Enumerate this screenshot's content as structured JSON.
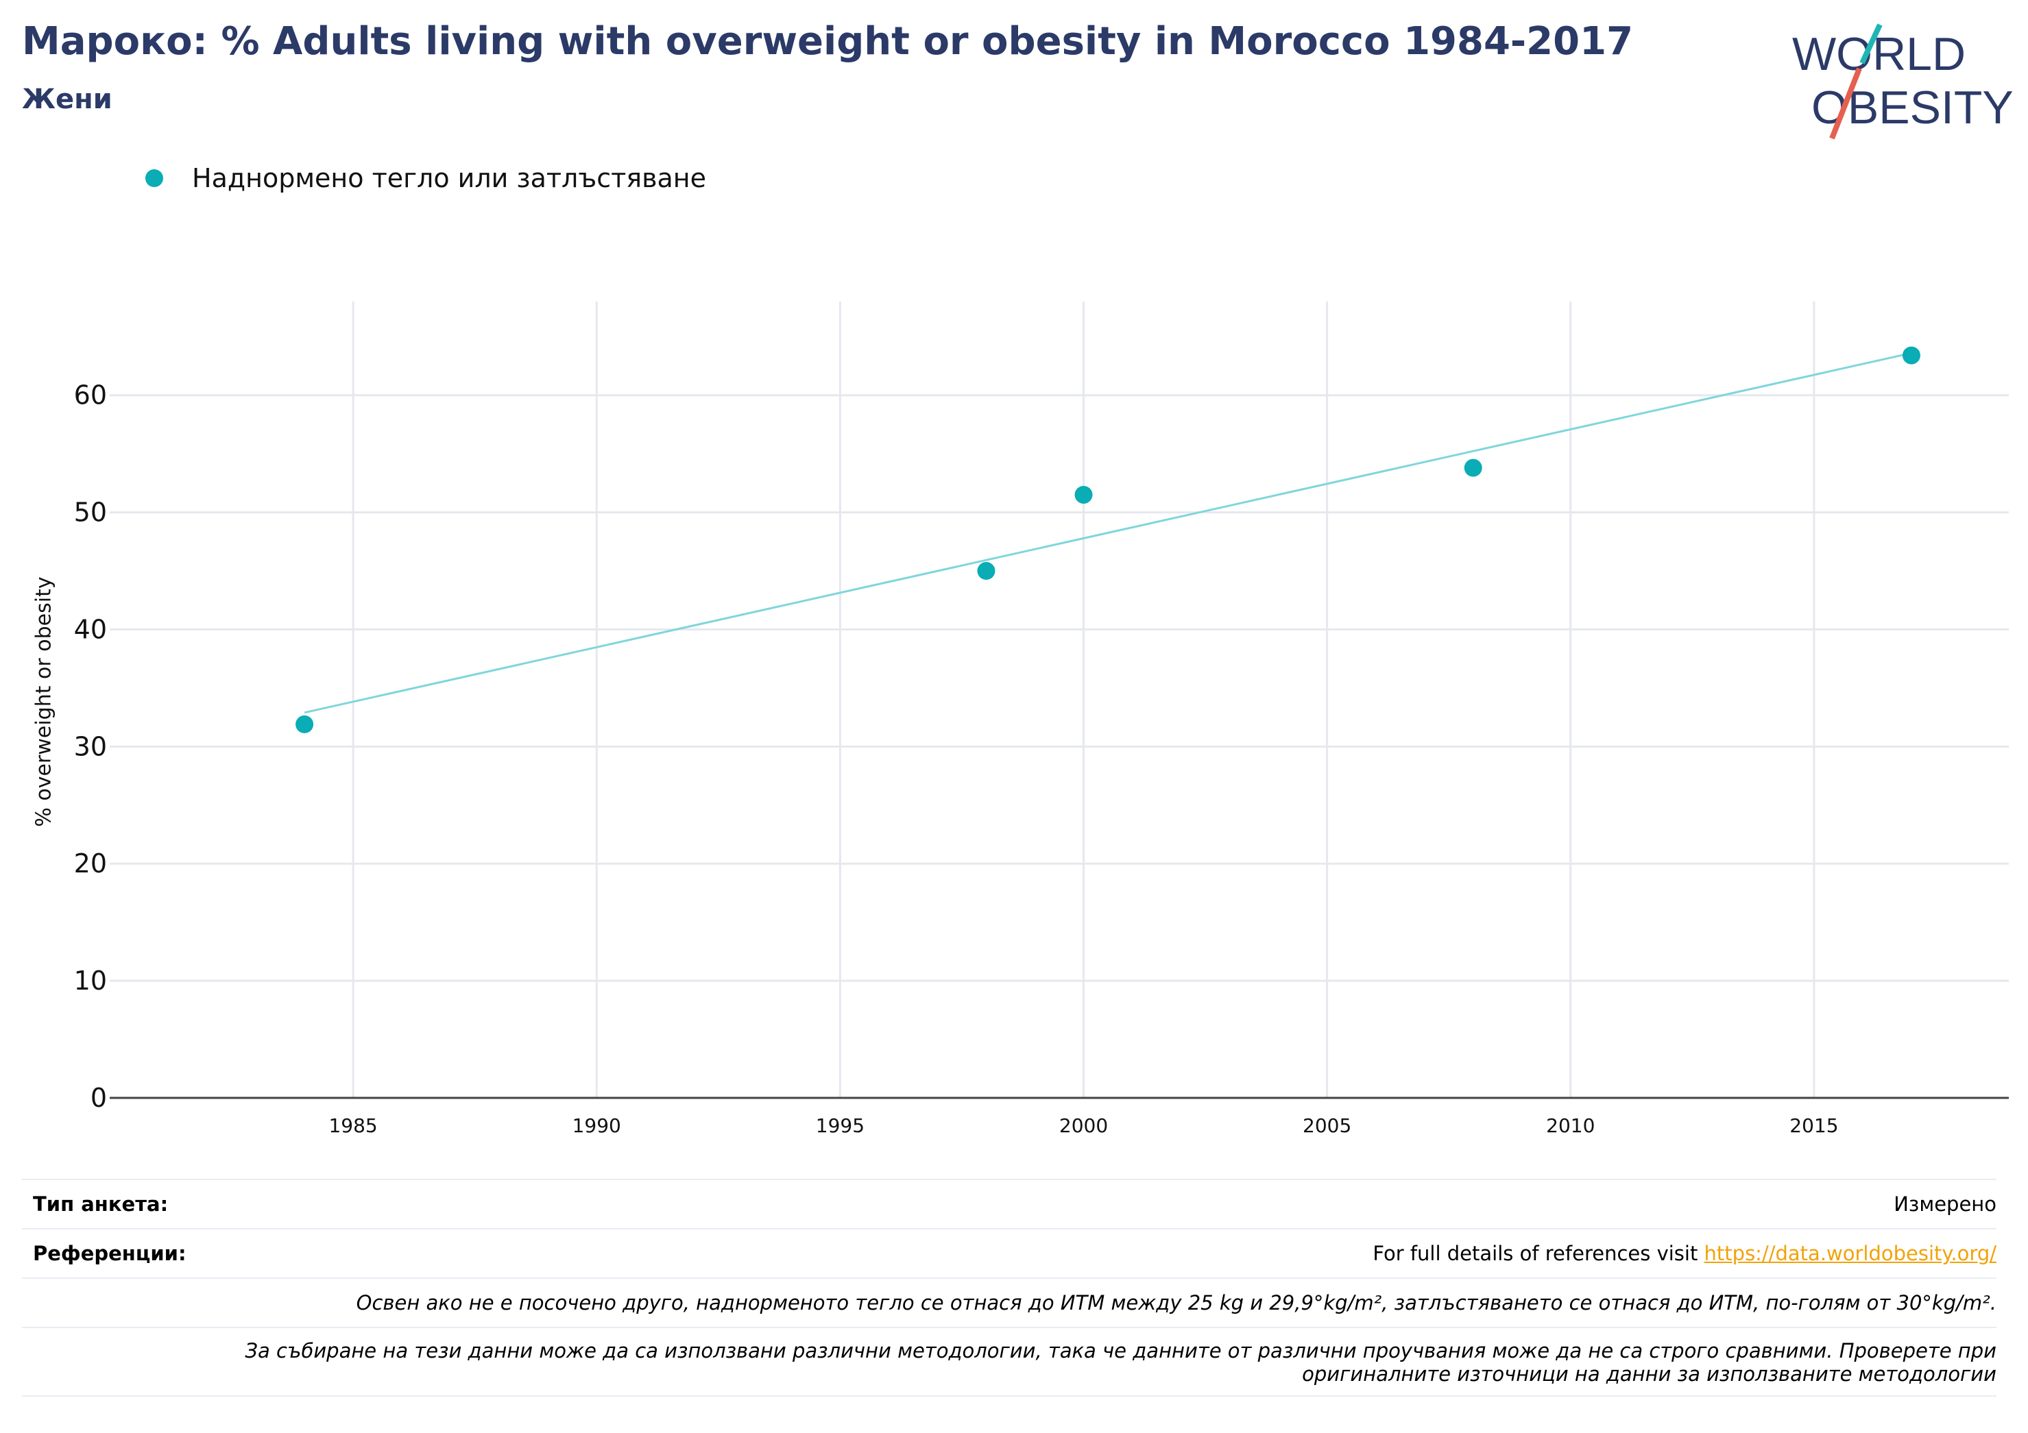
{
  "header": {
    "title": "Мароко: % Adults living with overweight or obesity in Morocco 1984-2017",
    "subtitle": "Жени"
  },
  "logo": {
    "line1": "WORLD",
    "line2": "OBESITY"
  },
  "legend": {
    "label": "Наднормено тегло или затлъстяване"
  },
  "colors": {
    "title": "#2b3a67",
    "series": "#0aacb5",
    "trend": "#7fd6db",
    "grid": "#e6e8ee",
    "link": "#f2a20a",
    "logo_teal": "#1fb5b5",
    "logo_red": "#e5604f"
  },
  "chart_data": {
    "type": "scatter",
    "title": "Мароко: % Adults living with overweight or obesity in Morocco 1984-2017",
    "subtitle": "Жени",
    "ylabel": "% overweight or obesity",
    "xlabel": "",
    "xlim": [
      1980,
      2019
    ],
    "ylim": [
      0,
      68
    ],
    "x_ticks": [
      1985,
      1990,
      1995,
      2000,
      2005,
      2010,
      2015
    ],
    "y_ticks": [
      0,
      10,
      20,
      30,
      40,
      50,
      60
    ],
    "grid": true,
    "legend_position": "top-left",
    "series": [
      {
        "name": "Наднормено тегло или затлъстяване",
        "x": [
          1984,
          1998,
          2000,
          2008,
          2017
        ],
        "y": [
          31.9,
          45.0,
          51.5,
          53.8,
          63.4
        ]
      }
    ],
    "trendline": {
      "x": [
        1984,
        2017
      ],
      "y": [
        32.9,
        63.6
      ]
    }
  },
  "info": {
    "survey_type_label": "Тип анкета:",
    "survey_type_value": "Измерено",
    "references_label": "Референции:",
    "references_text": "For full details of references visit ",
    "references_link": "https://data.worldobesity.org/",
    "note1": "Освен ако не е посочено друго, наднорменото тегло се отнася до ИТМ между 25 kg и 29,9°kg/m², затлъстяването се отнася до ИТМ, по-голям от 30°kg/m².",
    "note2_line1": "За събиране на тези данни може да са използвани различни методологии, така че данните от различни проучвания може да не са строго сравними. Проверете при",
    "note2_line2": "оригиналните източници на данни за използваните методологии"
  }
}
